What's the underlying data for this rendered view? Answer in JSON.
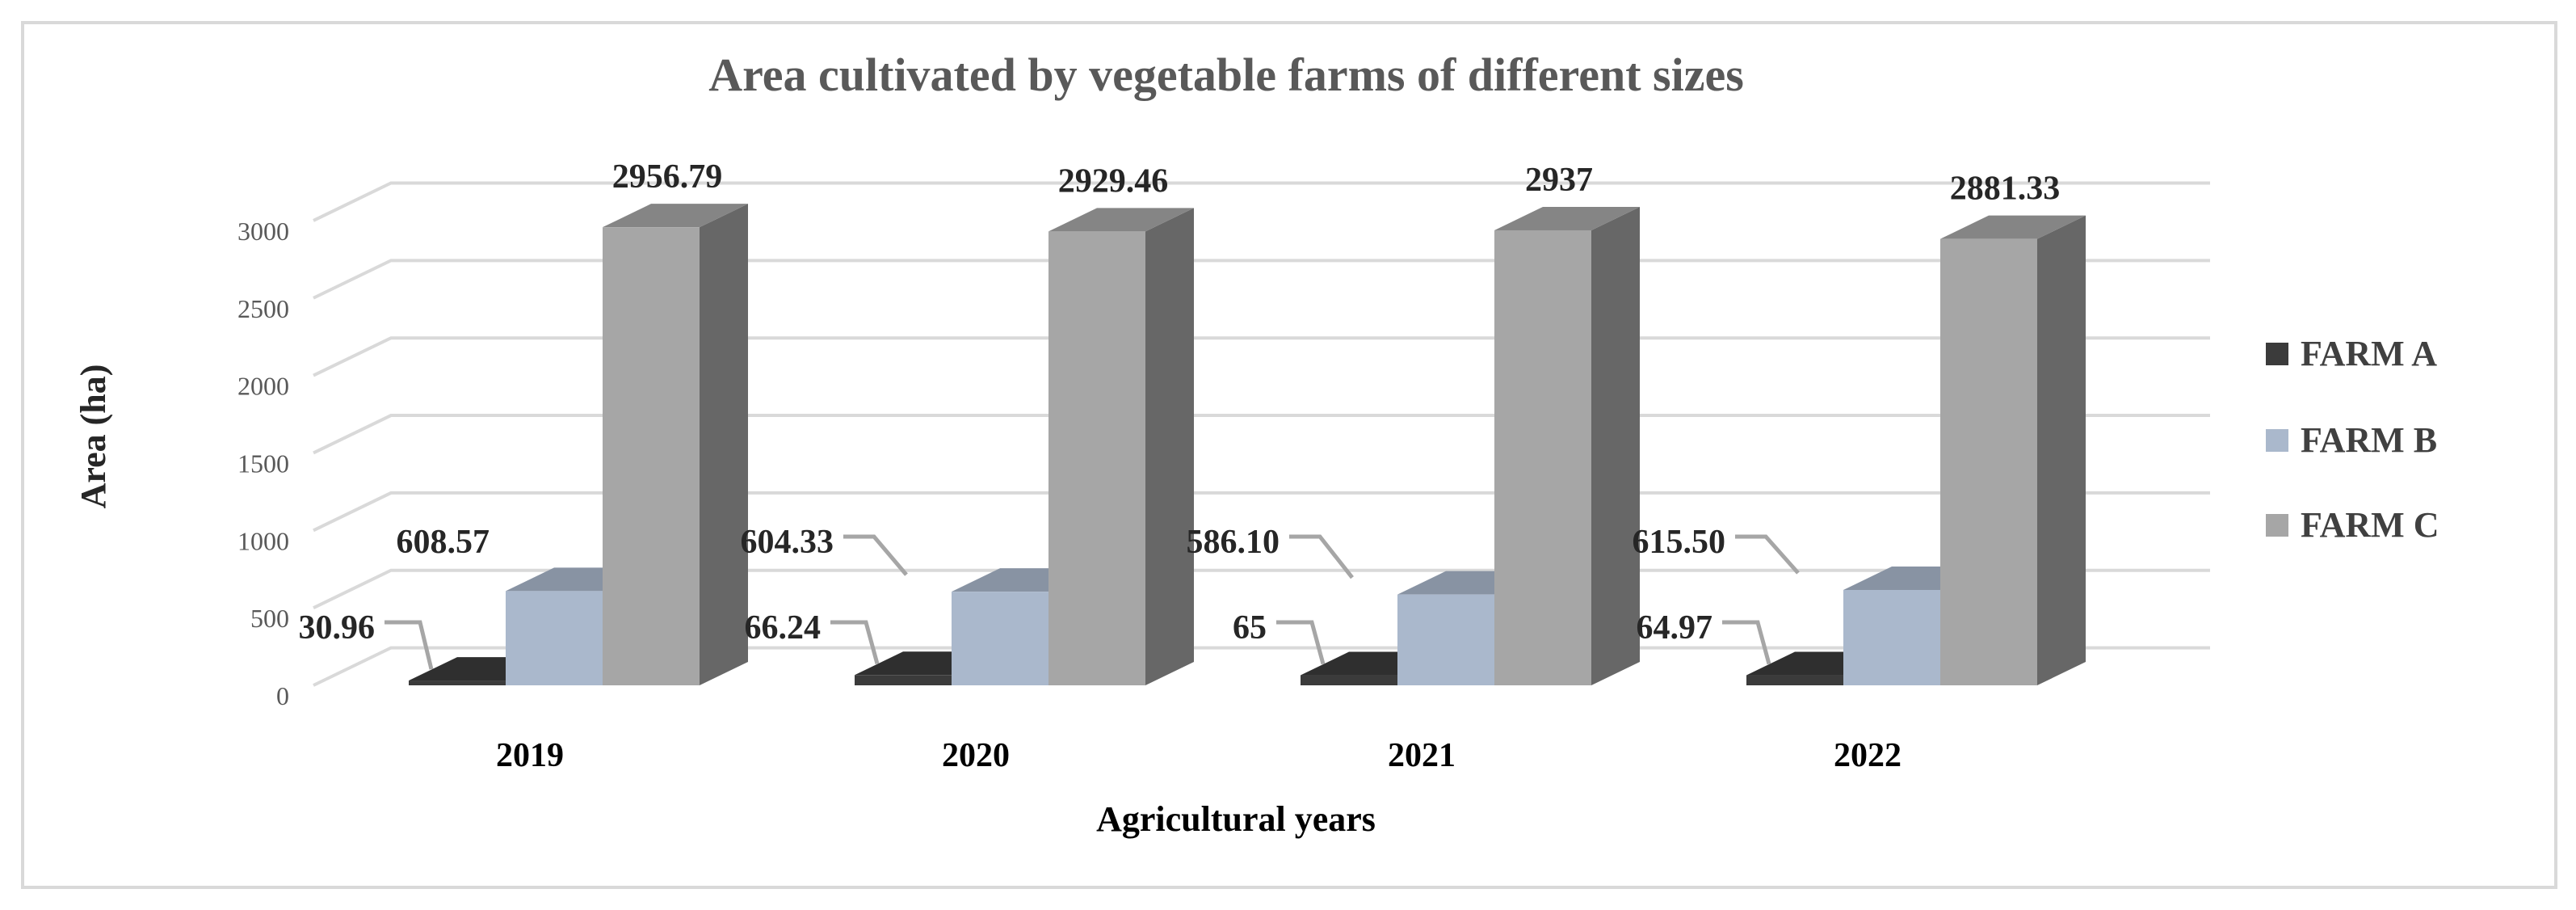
{
  "colors": {
    "farm_a": "#3b3b3b",
    "farm_b": "#aab8cc",
    "farm_c": "#a6a6a6",
    "title": "#595959",
    "gridline": "#d9d9d9",
    "frame": "#d9d9d9",
    "leader": "#a6a6a6"
  },
  "chart_data": {
    "type": "bar",
    "style": "3d-clustered-column",
    "title": "Area cultivated by vegetable farms of different sizes",
    "xlabel": "Agricultural years",
    "ylabel": "Area (ha)",
    "ylim": [
      0,
      3000
    ],
    "yticks": [
      "0",
      "500",
      "1000",
      "1500",
      "2000",
      "2500",
      "3000"
    ],
    "categories": [
      "2019",
      "2020",
      "2021",
      "2022"
    ],
    "legend_position": "right",
    "series": [
      {
        "name": "FARM A",
        "values": [
          30.96,
          66.24,
          65,
          64.97
        ],
        "labels": [
          "30.96",
          "66.24",
          "65",
          "64.97"
        ]
      },
      {
        "name": "FARM B",
        "values": [
          608.57,
          604.33,
          586.1,
          615.5
        ],
        "labels": [
          "608.57",
          "604.33",
          "586.10",
          "615.50"
        ]
      },
      {
        "name": "FARM C",
        "values": [
          2956.79,
          2929.46,
          2937,
          2881.33
        ],
        "labels": [
          "2956.79",
          "2929.46",
          "2937",
          "2881.33"
        ]
      }
    ]
  }
}
